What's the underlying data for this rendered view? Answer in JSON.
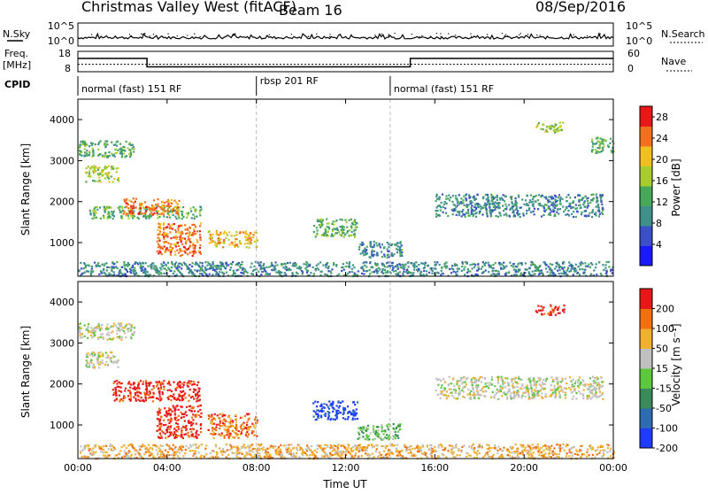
{
  "header": {
    "station": "Christmas Valley West (fitACF)",
    "beam": "Beam 16",
    "date": "08/Sep/2016"
  },
  "noise_panel": {
    "left_label": "N.Sky",
    "right_label": "N.Search",
    "left_ticks": [
      "10^5",
      "10^0"
    ],
    "right_ticks": [
      "10^5",
      "10^0"
    ]
  },
  "freq_panel": {
    "left_label_1": "Freq.",
    "left_label_2": "[MHz]",
    "right_label": "Nave",
    "left_ticks": [
      "18",
      "8"
    ],
    "right_ticks": [
      "60",
      "0"
    ],
    "freq_steps": [
      {
        "start_h": 0.0,
        "end_h": 3.1,
        "mhz": 14.5
      },
      {
        "start_h": 3.1,
        "end_h": 14.9,
        "mhz": 10.4
      },
      {
        "start_h": 14.9,
        "end_h": 24.0,
        "mhz": 14.5
      }
    ],
    "nave_level": 22
  },
  "cpid": {
    "label": "CPID",
    "segments": [
      {
        "start_h": 0.0,
        "end_h": 8.0,
        "label": "normal (fast) 151 RF"
      },
      {
        "start_h": 8.0,
        "end_h": 14.0,
        "label": "rbsp 201 RF"
      },
      {
        "start_h": 14.0,
        "end_h": 24.0,
        "label": "normal (fast) 151 RF"
      }
    ]
  },
  "chart_data": [
    {
      "type": "heatmap",
      "title": "",
      "xlabel": "",
      "ylabel": "Slant Range [km]",
      "colorbar_label": "Power [dB]",
      "colorbar_ticks": [
        "4",
        "8",
        "12",
        "16",
        "20",
        "24",
        "28"
      ],
      "colorbar_range": [
        0,
        30
      ],
      "colors": [
        "#1a1aff",
        "#3a4fc8",
        "#3f8f8a",
        "#48a85a",
        "#a8cc30",
        "#f0c020",
        "#f07020",
        "#e81818"
      ],
      "xlim": [
        0,
        24
      ],
      "ylim": [
        180,
        4500
      ],
      "yticks": [
        1000,
        2000,
        3000,
        4000
      ],
      "regions": [
        {
          "t0": 0.0,
          "t1": 2.5,
          "r0": 3100,
          "r1": 3500,
          "level": 3
        },
        {
          "t0": 0.3,
          "t1": 1.8,
          "r0": 2500,
          "r1": 2900,
          "level": 4
        },
        {
          "t0": 0.5,
          "t1": 5.5,
          "r0": 1600,
          "r1": 1900,
          "level": 3
        },
        {
          "t0": 2.0,
          "t1": 4.5,
          "r0": 1700,
          "r1": 2100,
          "level": 6
        },
        {
          "t0": 3.5,
          "t1": 5.5,
          "r0": 700,
          "r1": 1500,
          "level": 6
        },
        {
          "t0": 5.8,
          "t1": 8.0,
          "r0": 900,
          "r1": 1300,
          "level": 5
        },
        {
          "t0": 0.0,
          "t1": 24.0,
          "r0": 200,
          "r1": 550,
          "level": 2
        },
        {
          "t0": 10.5,
          "t1": 12.5,
          "r0": 1150,
          "r1": 1600,
          "level": 3
        },
        {
          "t0": 12.5,
          "t1": 14.5,
          "r0": 650,
          "r1": 1050,
          "level": 2
        },
        {
          "t0": 16.0,
          "t1": 23.5,
          "r0": 1650,
          "r1": 2200,
          "level": 2
        },
        {
          "t0": 23.0,
          "t1": 24.0,
          "r0": 3200,
          "r1": 3600,
          "level": 3
        },
        {
          "t0": 20.5,
          "t1": 21.8,
          "r0": 3700,
          "r1": 3950,
          "level": 4
        }
      ]
    },
    {
      "type": "heatmap",
      "title": "",
      "xlabel": "Time UT",
      "ylabel": "Slant Range [km]",
      "colorbar_label": "Velocity [m s⁻¹]",
      "colorbar_ticks": [
        "200",
        "100",
        "50",
        "15",
        "-15",
        "-50",
        "-100",
        "-200"
      ],
      "colorbar_range": [
        -250,
        250
      ],
      "colors": [
        "#1e3cff",
        "#2f6bb0",
        "#3a8a5a",
        "#5cc840",
        "#c0c0c0",
        "#f0b030",
        "#f07010",
        "#e81818"
      ],
      "xlim": [
        0,
        24
      ],
      "ylim": [
        180,
        4500
      ],
      "yticks": [
        1000,
        2000,
        3000,
        4000
      ],
      "xticks": [
        "00:00",
        "04:00",
        "08:00",
        "12:00",
        "16:00",
        "20:00",
        "00:00"
      ],
      "regions": [
        {
          "t0": 0.0,
          "t1": 2.5,
          "r0": 3100,
          "r1": 3500,
          "level": 4
        },
        {
          "t0": 0.3,
          "t1": 1.8,
          "r0": 2400,
          "r1": 2800,
          "level": 4
        },
        {
          "t0": 1.5,
          "t1": 5.5,
          "r0": 1600,
          "r1": 2100,
          "level": 7
        },
        {
          "t0": 3.5,
          "t1": 5.5,
          "r0": 700,
          "r1": 1500,
          "level": 7
        },
        {
          "t0": 5.8,
          "t1": 8.0,
          "r0": 700,
          "r1": 1300,
          "level": 6
        },
        {
          "t0": 0.0,
          "t1": 24.0,
          "r0": 200,
          "r1": 550,
          "level": 5
        },
        {
          "t0": 10.5,
          "t1": 12.5,
          "r0": 1150,
          "r1": 1600,
          "level": 0
        },
        {
          "t0": 12.5,
          "t1": 14.5,
          "r0": 650,
          "r1": 1050,
          "level": 3
        },
        {
          "t0": 16.0,
          "t1": 23.5,
          "r0": 1650,
          "r1": 2200,
          "level": 4
        },
        {
          "t0": 20.5,
          "t1": 21.8,
          "r0": 3700,
          "r1": 3950,
          "level": 7
        }
      ]
    }
  ]
}
